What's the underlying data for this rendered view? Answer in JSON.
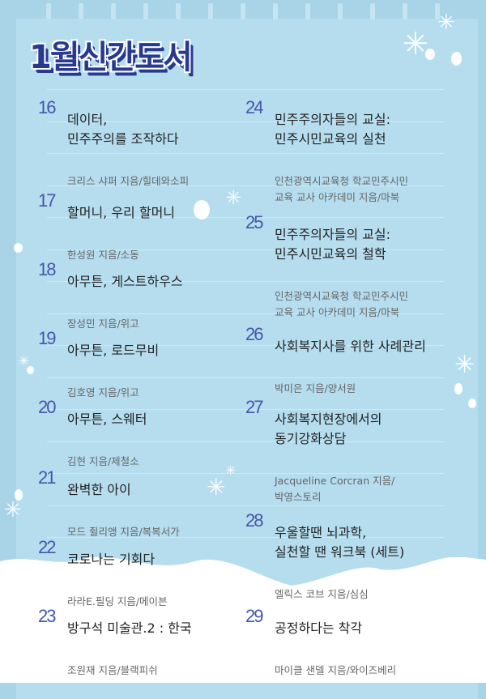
{
  "title": "1월신간도서",
  "colors": {
    "background": "#a9d3e7",
    "panel": "#b5ddee",
    "title": "#283a8e",
    "number": "#4556ad"
  },
  "left": [
    {
      "num": "16",
      "title": "데이터,\n민주주의를 조작하다",
      "author": "크리스 샤퍼 지음/힐데와소피"
    },
    {
      "num": "17",
      "title": "할머니, 우리 할머니",
      "author": "한성원 지음/소동"
    },
    {
      "num": "18",
      "title": "아무튼, 게스트하우스",
      "author": "장성민 지음/위고"
    },
    {
      "num": "19",
      "title": "아무튼, 로드무비",
      "author": "김호영 지음/위고"
    },
    {
      "num": "20",
      "title": "아무튼, 스웨터",
      "author": "김현 지음/제철소"
    },
    {
      "num": "21",
      "title": "완벽한 아이",
      "author": "모드 쥘리앵 지음/복복서가"
    },
    {
      "num": "22",
      "title": "코로나는 기회다",
      "author": "라라E.필딩 지음/메이븐"
    },
    {
      "num": "23",
      "title": "방구석 미술관.2 : 한국",
      "author": "조원재 지음/블랙피쉬"
    }
  ],
  "right": [
    {
      "num": "24",
      "title": "민주주의자들의 교실:\n민주시민교육의 실천",
      "author": "인천광역시교육청 학교민주시민\n교육 교사 아카데미 지음/마북"
    },
    {
      "num": "25",
      "title": "민주주의자들의 교실:\n민주시민교육의 철학",
      "author": "인천광역시교육청 학교민주시민\n교육 교사 아카데미 지음/마북"
    },
    {
      "num": "26",
      "title": "사회복지사를 위한 사례관리",
      "author": "박미은 지음/양서원"
    },
    {
      "num": "27",
      "title": "사회복지현장에서의\n동기강화상담",
      "author": "Jacqueline Corcran 지음/\n박영스토리"
    },
    {
      "num": "28",
      "title": "우울할땐 뇌과학,\n실천할 땐 워크북 (세트)",
      "author": "엘릭스 코브 지음/심심"
    },
    {
      "num": "29",
      "title": "공정하다는 착각",
      "author": "마이클 샌델 지음/와이즈베리"
    }
  ]
}
